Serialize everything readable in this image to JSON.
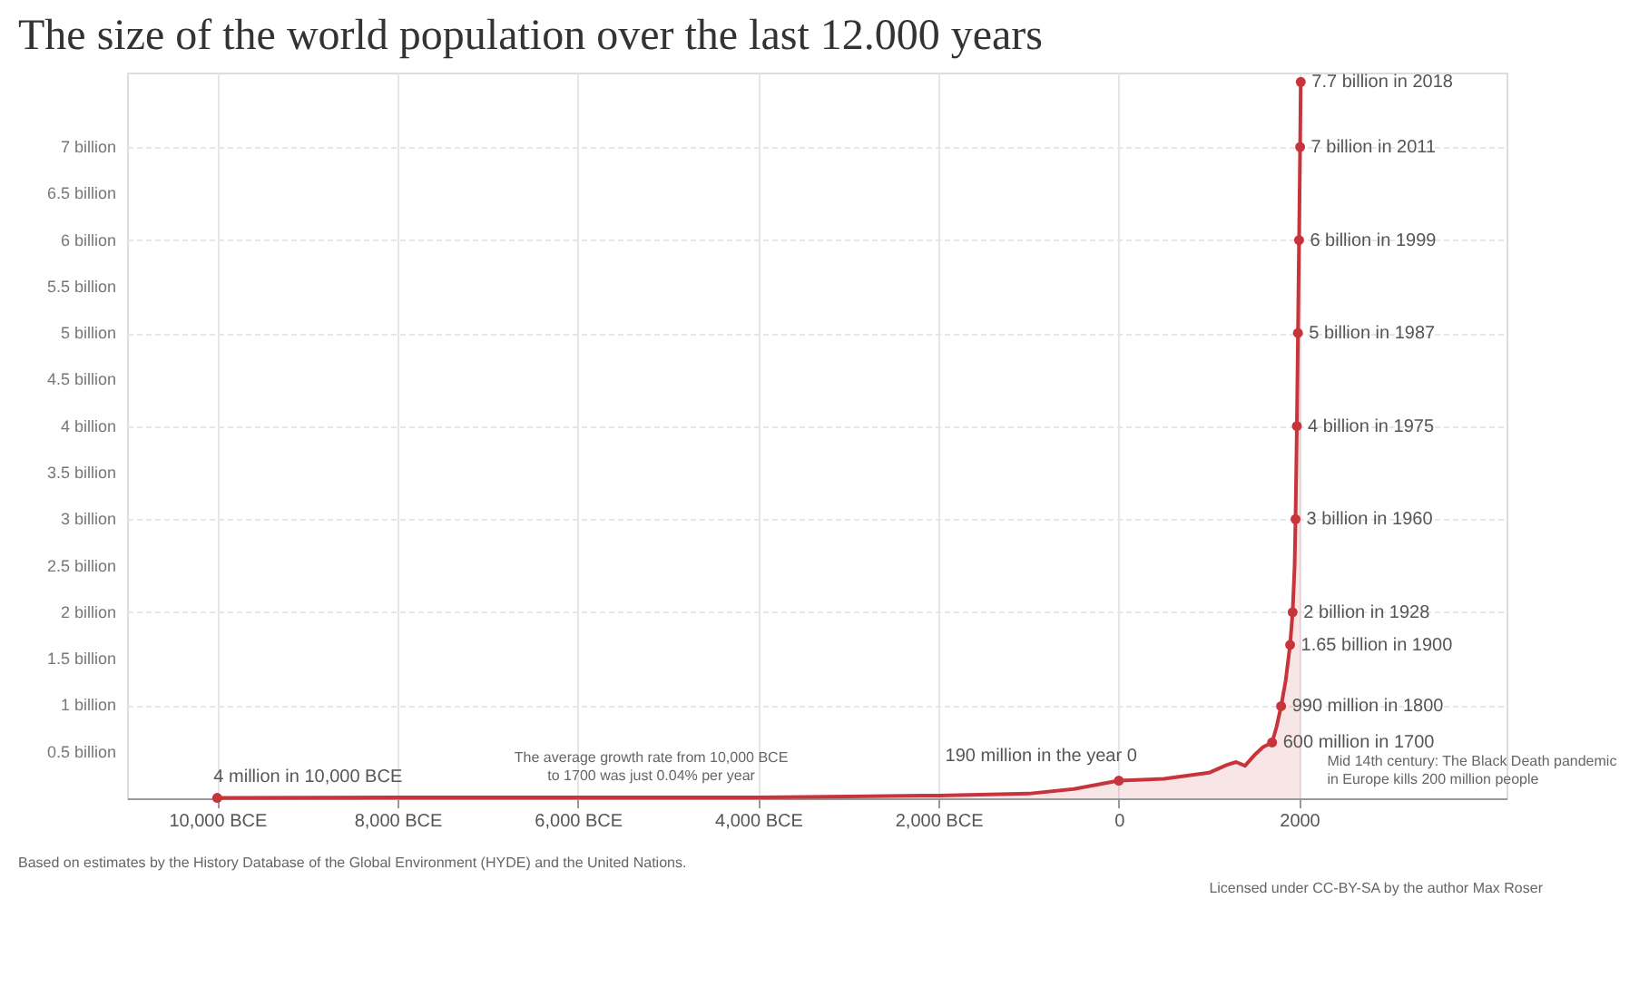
{
  "chart_data": {
    "type": "area",
    "title": "The size of the world population over the last 12.000 years",
    "xlim": [
      -11000,
      4300
    ],
    "xticks": [
      {
        "value": -10000,
        "label": "10,000 BCE"
      },
      {
        "value": -8000,
        "label": "8,000 BCE"
      },
      {
        "value": -6000,
        "label": "6,000 BCE"
      },
      {
        "value": -4000,
        "label": "4,000 BCE"
      },
      {
        "value": -2000,
        "label": "2,000 BCE"
      },
      0,
      2000
    ],
    "ylim": [
      0,
      7.8
    ],
    "yticks": [
      {
        "value": 0,
        "label": null
      },
      {
        "value": 0.5,
        "label": "0.5 billion"
      },
      {
        "value": 1,
        "label": "1 billion"
      },
      {
        "value": 1.5,
        "label": "1.5 billion"
      },
      {
        "value": 2,
        "label": "2 billion"
      },
      {
        "value": 2.5,
        "label": "2.5 billion"
      },
      {
        "value": 3,
        "label": "3 billion"
      },
      {
        "value": 3.5,
        "label": "3.5 billion"
      },
      {
        "value": 4,
        "label": "4 billion"
      },
      {
        "value": 4.5,
        "label": "4.5 billion"
      },
      {
        "value": 5,
        "label": "5 billion"
      },
      {
        "value": 5.5,
        "label": "5.5 billion"
      },
      {
        "value": 6,
        "label": "6 billion"
      },
      {
        "value": 6.5,
        "label": "6.5 billion"
      },
      {
        "value": 7,
        "label": "7 billion"
      }
    ],
    "grid": true,
    "marker": "none",
    "line_style": "solid",
    "series": [
      {
        "color": "#c8343b",
        "x": [
          -10000,
          -8000,
          -6000,
          -4000,
          -3000,
          -2000,
          -1000,
          -500,
          0,
          500,
          1000,
          1200,
          1300,
          1400,
          1500,
          1600,
          1700,
          1750,
          1800,
          1850,
          1900,
          1928,
          1950,
          1960,
          1975,
          1987,
          1999,
          2011,
          2018
        ],
        "values": [
          0.004,
          0.01,
          0.01,
          0.01,
          0.02,
          0.03,
          0.05,
          0.1,
          0.19,
          0.21,
          0.275,
          0.36,
          0.39,
          0.35,
          0.46,
          0.55,
          0.6,
          0.77,
          0.99,
          1.26,
          1.65,
          2,
          2.5,
          3,
          4,
          5,
          6,
          7,
          7.7
        ]
      }
    ],
    "annotations": [
      {
        "text": "4 million in 10,000 BCE",
        "x": -10000,
        "y": 0.004
      },
      {
        "text": "190 million in the year 0",
        "x": 0,
        "y": 0.19
      },
      {
        "text": "600 million in 1700",
        "x": 1700,
        "y": 0.6
      },
      {
        "text": "990 million in 1800",
        "x": 1800,
        "y": 0.99
      },
      {
        "text": "1.65 billion in 1900",
        "x": 1900,
        "y": 1.65
      },
      {
        "text": "2 billion in 1928",
        "x": 1928,
        "y": 2
      },
      {
        "text": "3 billion in 1960",
        "x": 1960,
        "y": 3
      },
      {
        "text": "4 billion in 1975",
        "x": 1975,
        "y": 4
      },
      {
        "text": "5 billion in 1987",
        "x": 1987,
        "y": 5
      },
      {
        "text": "6 billion in 1999",
        "x": 1999,
        "y": 6
      },
      {
        "text": "7 billion in 2011",
        "x": 2011,
        "y": 7
      },
      {
        "text": "7.7 billion in 2018",
        "x": 2018,
        "y": 7.7
      },
      "The average growth rate from 10,000 BCE to 1700 was just 0.04% per year",
      "Mid 14th century: The Black Death pandemic in Europe kills 200 million people",
      "Based on estimates by the History Database of the Global Environment (HYDE) and the United Nations.",
      "Licensed under CC-BY-SA by the author Max Roser"
    ]
  }
}
